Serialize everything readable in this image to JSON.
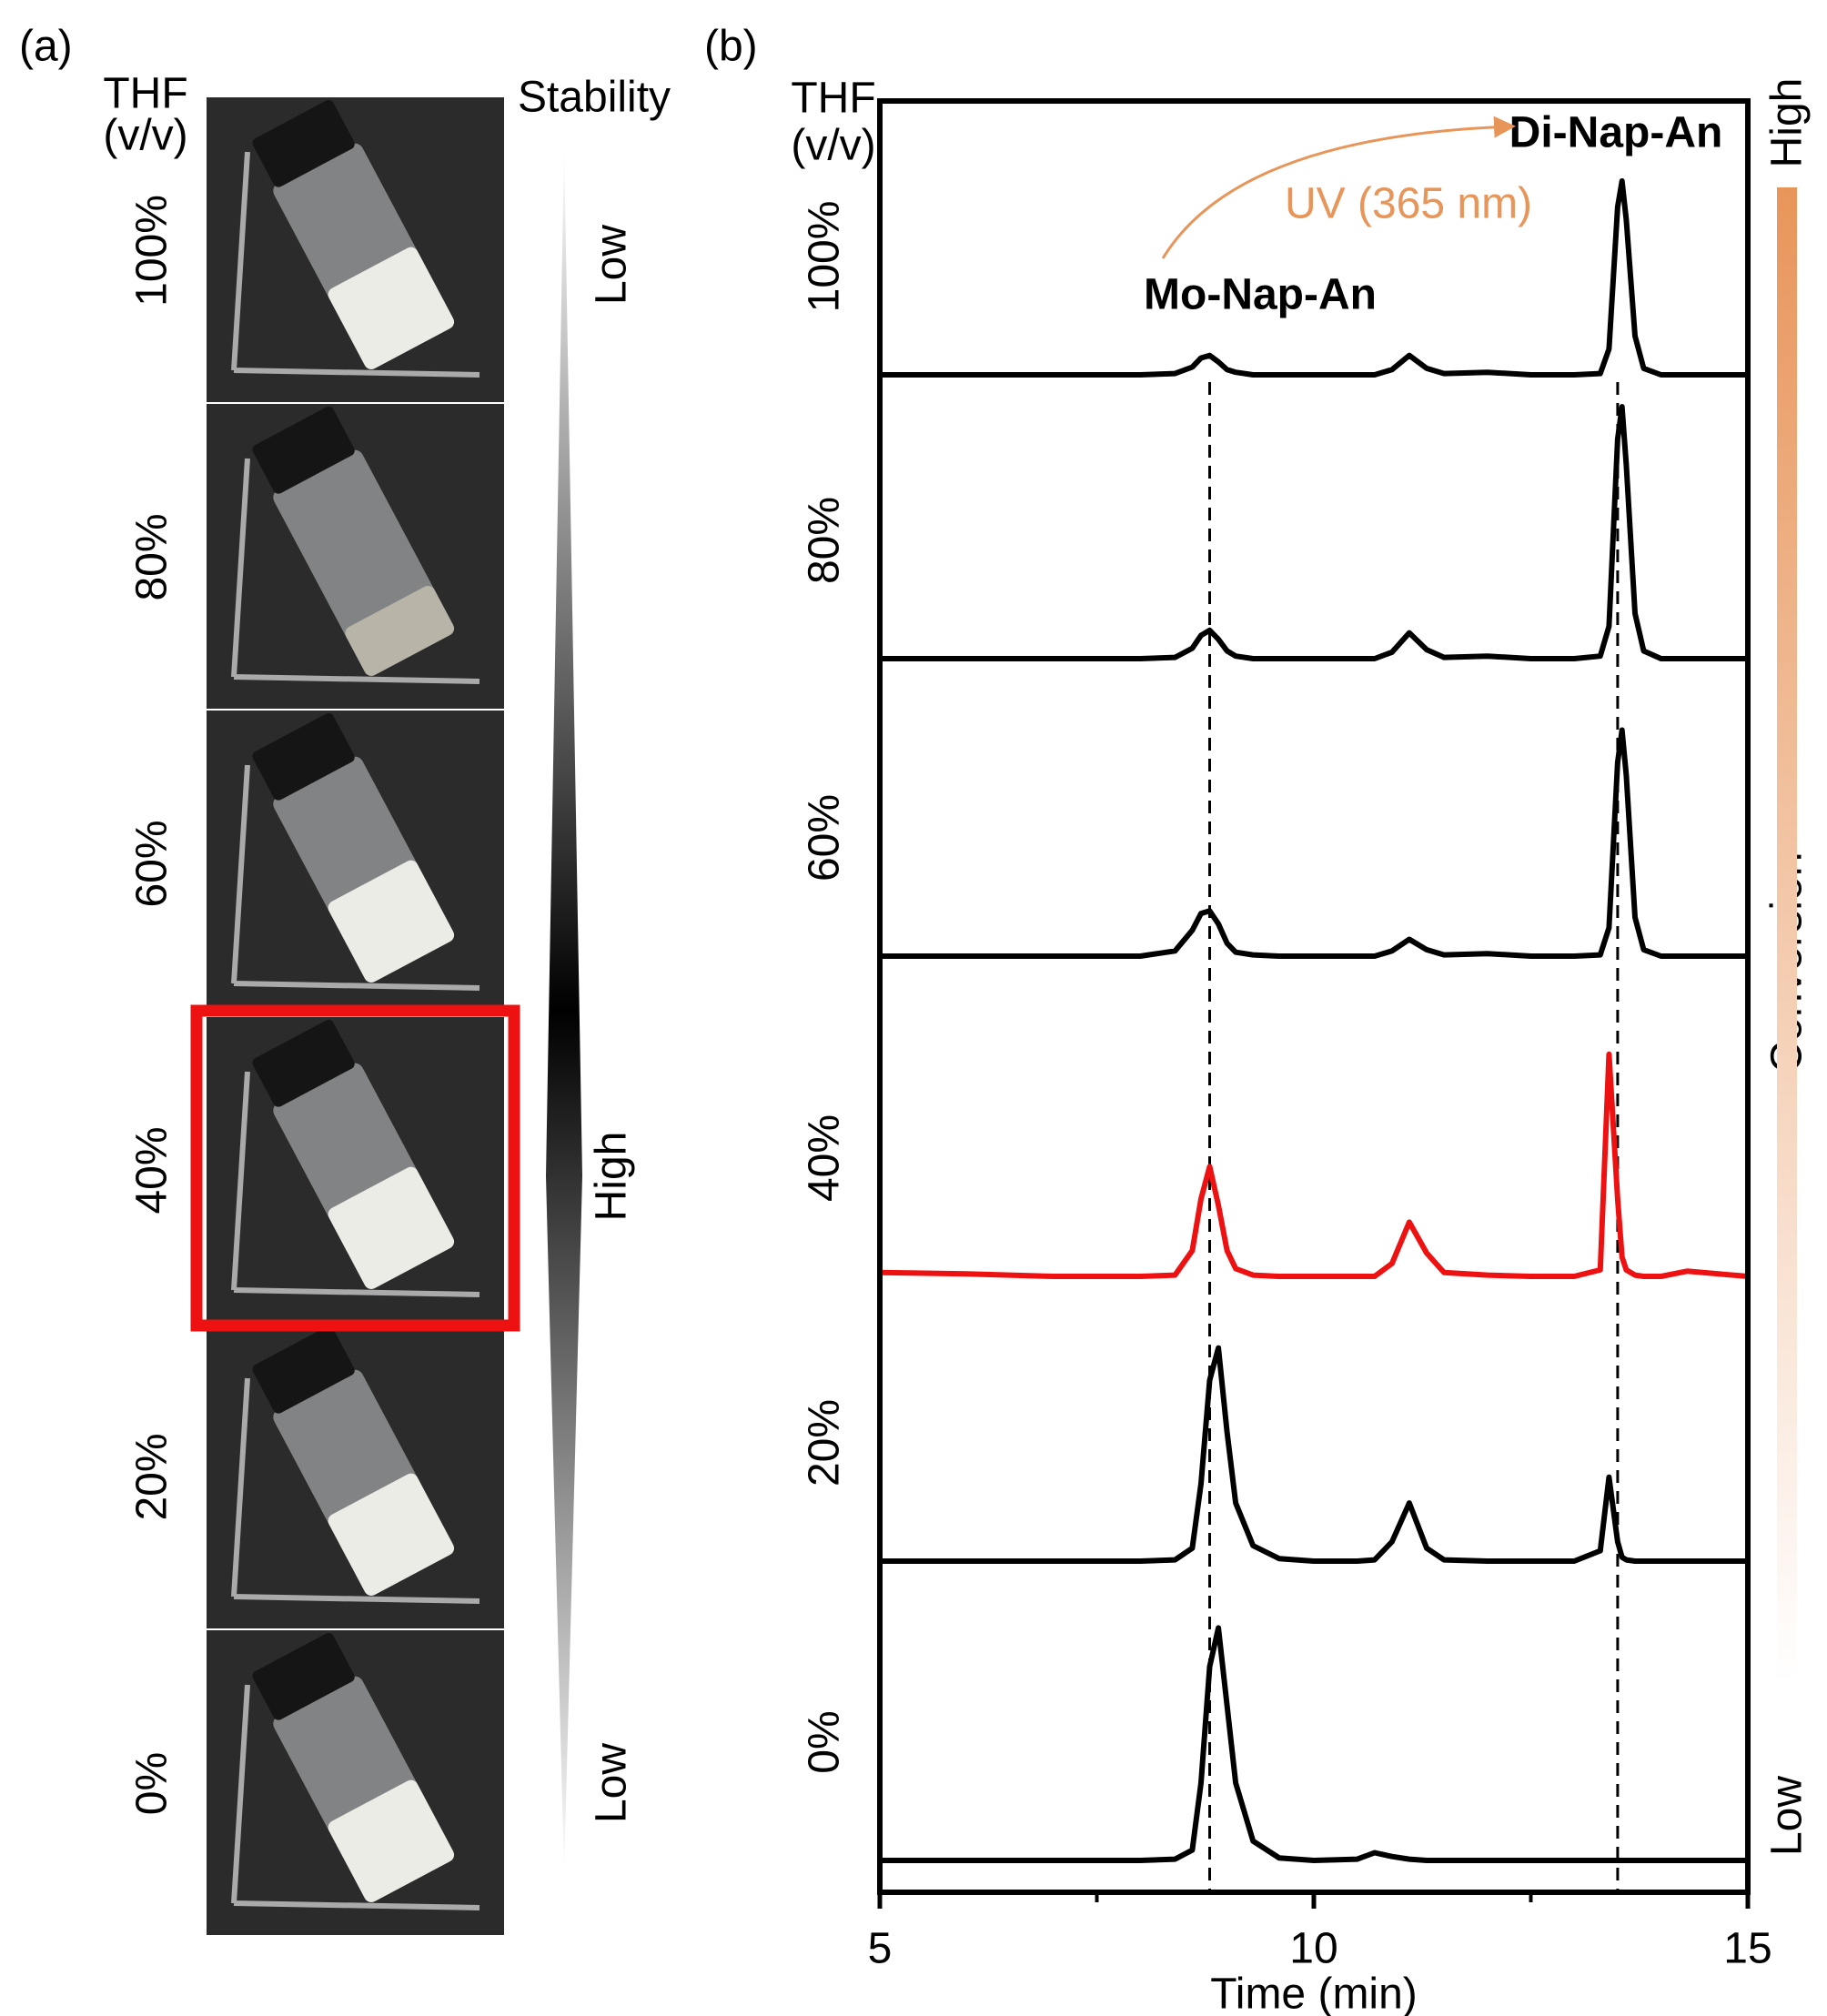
{
  "panel_a": {
    "label": "(a)",
    "header_left": [
      "THF",
      "(v/v)"
    ],
    "header_right": "Stability",
    "rows": [
      "100%",
      "80%",
      "60%",
      "40%",
      "20%",
      "0%"
    ],
    "stability_labels": [
      "Low",
      "High",
      "Low"
    ]
  },
  "chart_data": {
    "type": "line",
    "panel_label": "(b)",
    "y_label": [
      "THF",
      "(v/v)"
    ],
    "x_label": "Time (min)",
    "x": [
      5,
      6,
      7,
      8,
      8.4,
      8.6,
      8.7,
      8.8,
      8.9,
      9.0,
      9.1,
      9.3,
      9.6,
      10,
      10.5,
      10.7,
      10.9,
      11.1,
      11.3,
      11.5,
      12,
      12.5,
      13,
      13.3,
      13.4,
      13.5,
      13.55,
      13.6,
      13.7,
      13.8,
      14,
      14.3,
      15
    ],
    "xlim": [
      5,
      15
    ],
    "xticks": [
      5,
      10,
      15
    ],
    "minor_xticks": [
      7.5,
      12.5
    ],
    "series": [
      {
        "name": "100%",
        "color": "#000000",
        "values": [
          0,
          0,
          0,
          0,
          1,
          6,
          13,
          15,
          10,
          4,
          2,
          0,
          0,
          0,
          0,
          0,
          4,
          15,
          5,
          1,
          2,
          0,
          0,
          1,
          20,
          130,
          150,
          120,
          30,
          5,
          0,
          0,
          0
        ]
      },
      {
        "name": "80%",
        "color": "#000000",
        "values": [
          0,
          0,
          0,
          0,
          1,
          8,
          18,
          22,
          15,
          6,
          2,
          0,
          0,
          0,
          0,
          0,
          5,
          20,
          7,
          1,
          2,
          0,
          0,
          2,
          25,
          170,
          195,
          150,
          35,
          6,
          0,
          0,
          0
        ]
      },
      {
        "name": "60%",
        "color": "#000000",
        "values": [
          0,
          0,
          0,
          0,
          4,
          20,
          33,
          35,
          25,
          10,
          3,
          1,
          0,
          0,
          0,
          0,
          4,
          13,
          5,
          1,
          2,
          0,
          0,
          1,
          22,
          150,
          175,
          140,
          30,
          5,
          0,
          0,
          0
        ]
      },
      {
        "name": "40%",
        "color": "#ee1111",
        "values": [
          3,
          2,
          0,
          0,
          1,
          20,
          60,
          85,
          55,
          20,
          6,
          1,
          0,
          0,
          0,
          0,
          10,
          42,
          18,
          3,
          1,
          0,
          0,
          5,
          172,
          60,
          15,
          5,
          1,
          0,
          0,
          4,
          0
        ]
      },
      {
        "name": "20%",
        "color": "#000000",
        "values": [
          0,
          0,
          0,
          0,
          1,
          10,
          60,
          140,
          165,
          100,
          45,
          12,
          2,
          0,
          0,
          1,
          15,
          45,
          10,
          1,
          0,
          0,
          0,
          8,
          65,
          15,
          3,
          1,
          0,
          0,
          0,
          0,
          0
        ]
      },
      {
        "name": "0%",
        "color": "#000000",
        "values": [
          0,
          0,
          0,
          0,
          1,
          8,
          60,
          150,
          180,
          120,
          60,
          15,
          2,
          0,
          1,
          6,
          3,
          1,
          0,
          0,
          0,
          0,
          0,
          0,
          0,
          0,
          0,
          0,
          0,
          0,
          0,
          0,
          0
        ]
      }
    ],
    "reference_lines": [
      8.8,
      13.5
    ],
    "annotations": {
      "mo": "Mo-Nap-An",
      "di": "Di-Nap-An",
      "uv": "UV (365 nm)"
    },
    "conversion": {
      "label": "Conversion",
      "high": "High",
      "low": "Low",
      "color": "#e8955a"
    }
  }
}
